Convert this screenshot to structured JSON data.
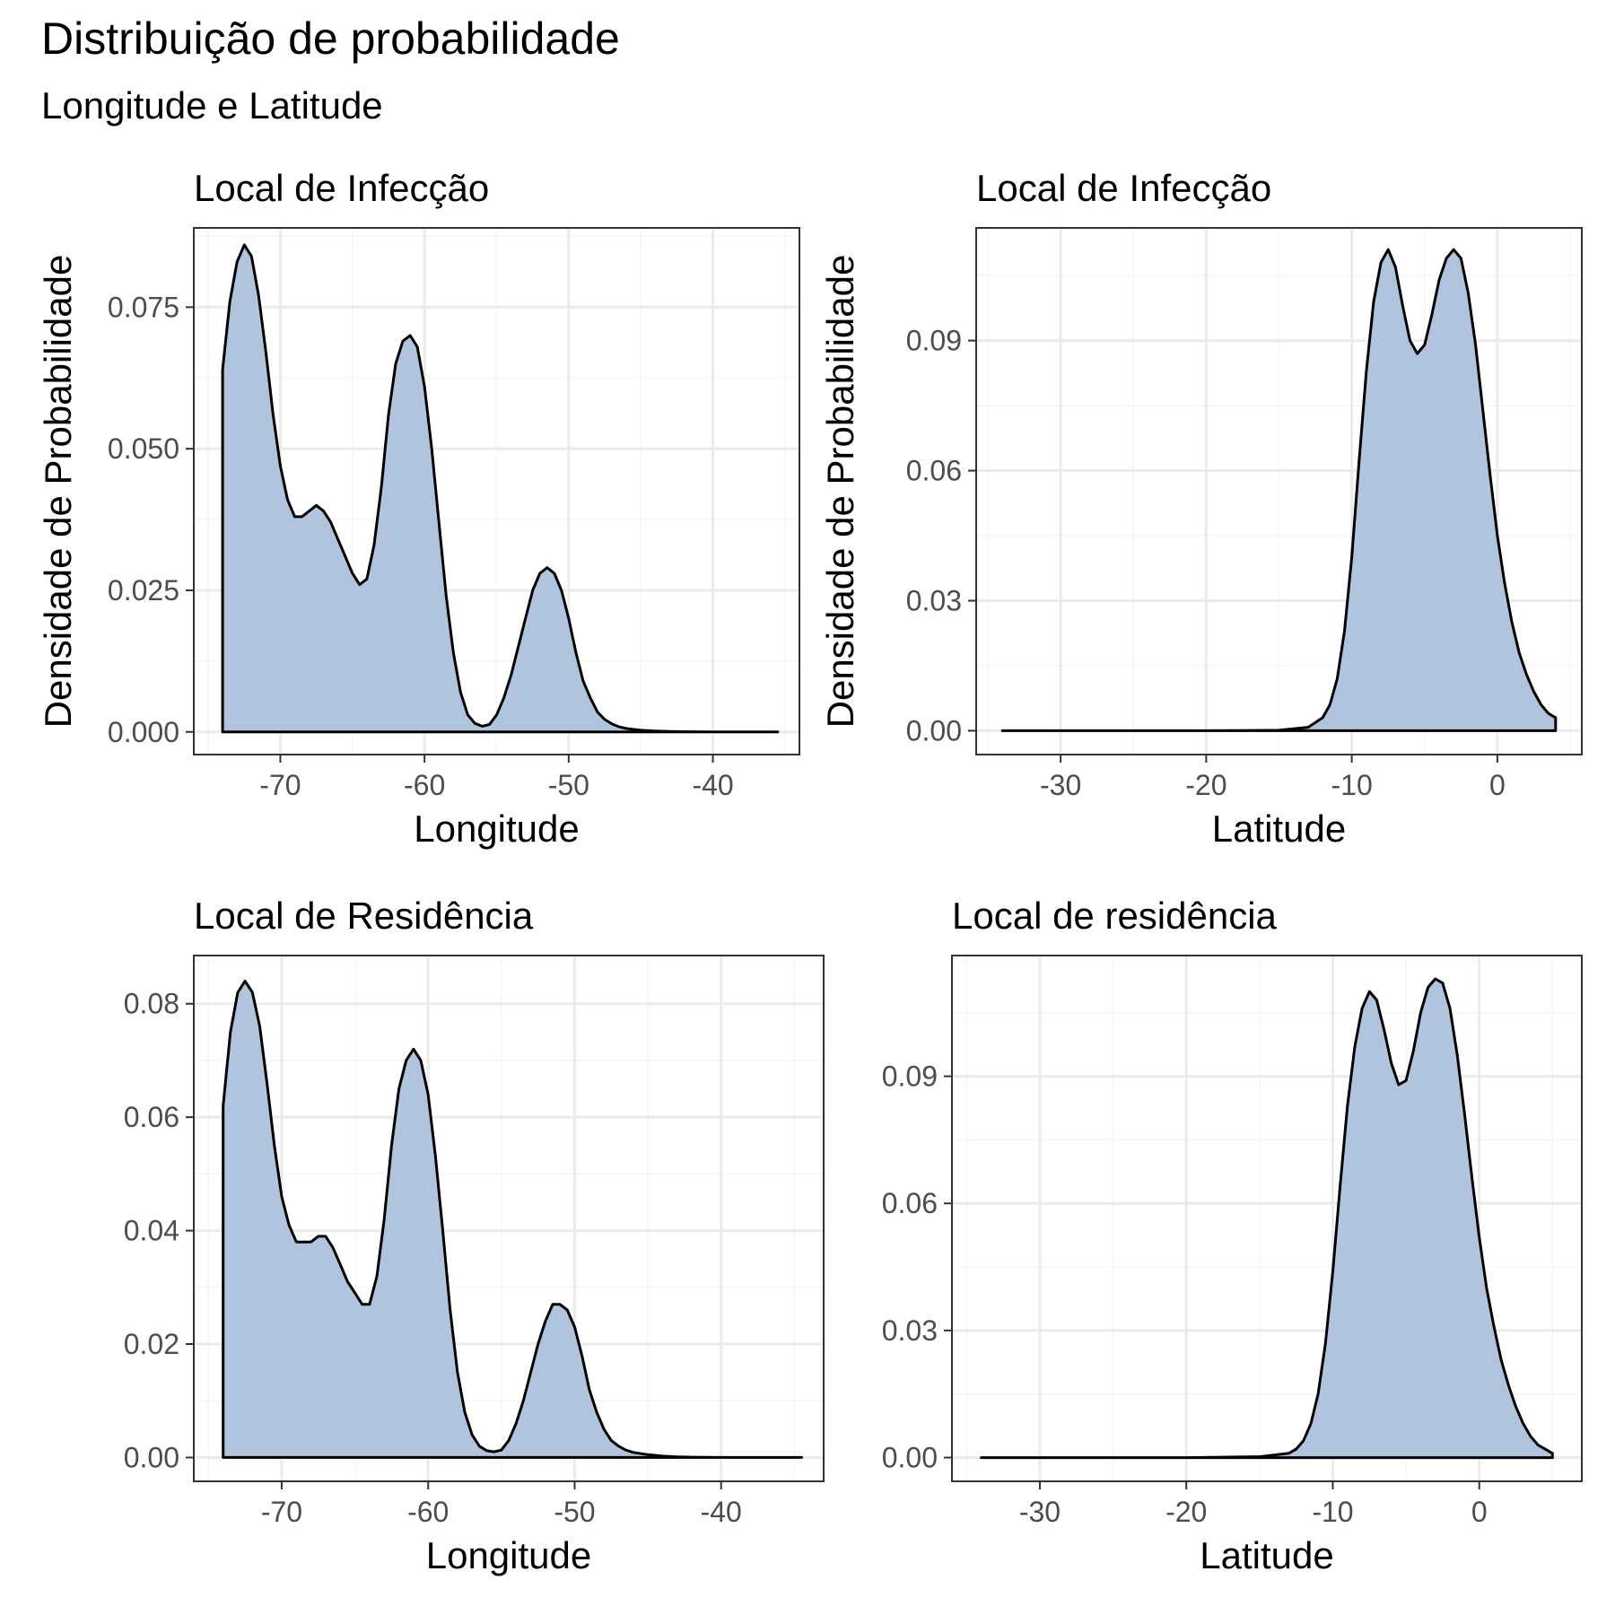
{
  "title": "Distribuição de probabilidade",
  "subtitle": "Longitude e Latitude",
  "colors": {
    "fill": "#b0c4de",
    "line": "#000000",
    "grid_major": "#ebebeb",
    "grid_minor": "#f5f5f5",
    "panel_border": "#333333",
    "tick_text": "#4d4d4d"
  },
  "chart_data": [
    {
      "type": "area",
      "title": "Local de Infecção",
      "xlabel": "Longitude",
      "ylabel": "Densidade de Probabilidade",
      "xlim": [
        -76,
        -34
      ],
      "ylim": [
        -0.004,
        0.089
      ],
      "xticks": [
        -70,
        -60,
        -50,
        -40
      ],
      "yticks": [
        0,
        0.025,
        0.05,
        0.075
      ],
      "ytick_labels": [
        "0.000",
        "0.025",
        "0.050",
        "0.075"
      ],
      "grid": true,
      "series": [
        {
          "x": [
            -74,
            -73.5,
            -73,
            -72.5,
            -72,
            -71.5,
            -71,
            -70.5,
            -70,
            -69.5,
            -69,
            -68.5,
            -68,
            -67.5,
            -67,
            -66.5,
            -66,
            -65.5,
            -65,
            -64.5,
            -64,
            -63.5,
            -63,
            -62.5,
            -62,
            -61.5,
            -61,
            -60.5,
            -60,
            -59.5,
            -59,
            -58.5,
            -58,
            -57.5,
            -57,
            -56.5,
            -56,
            -55.5,
            -55,
            -54.5,
            -54,
            -53.5,
            -53,
            -52.5,
            -52,
            -51.5,
            -51,
            -50.5,
            -50,
            -49.5,
            -49,
            -48.5,
            -48,
            -47.5,
            -47,
            -46.5,
            -46,
            -45,
            -44,
            -43,
            -42,
            -40,
            -38,
            -35.5
          ],
          "y": [
            0.064,
            0.076,
            0.083,
            0.086,
            0.084,
            0.077,
            0.067,
            0.056,
            0.047,
            0.041,
            0.038,
            0.038,
            0.039,
            0.04,
            0.039,
            0.037,
            0.034,
            0.031,
            0.028,
            0.026,
            0.027,
            0.033,
            0.043,
            0.056,
            0.065,
            0.069,
            0.07,
            0.068,
            0.061,
            0.05,
            0.037,
            0.024,
            0.014,
            0.007,
            0.003,
            0.0015,
            0.001,
            0.0013,
            0.003,
            0.006,
            0.01,
            0.015,
            0.02,
            0.025,
            0.028,
            0.029,
            0.028,
            0.025,
            0.02,
            0.014,
            0.009,
            0.006,
            0.0035,
            0.0022,
            0.0014,
            0.0009,
            0.0006,
            0.0003,
            0.00015,
            8e-05,
            4e-05,
            1e-05,
            0,
            0
          ]
        }
      ]
    },
    {
      "type": "area",
      "title": "Local de Infecção",
      "xlabel": "Latitude",
      "ylabel": "Densidade de Probabilidade",
      "xlim": [
        -35.8,
        5.8
      ],
      "ylim": [
        -0.0055,
        0.116
      ],
      "xticks": [
        -30,
        -20,
        -10,
        0
      ],
      "yticks": [
        0,
        0.03,
        0.06,
        0.09
      ],
      "ytick_labels": [
        "0.00",
        "0.03",
        "0.06",
        "0.09"
      ],
      "grid": true,
      "series": [
        {
          "x": [
            -34,
            -30,
            -25,
            -20,
            -15,
            -13,
            -12,
            -11.5,
            -11,
            -10.5,
            -10,
            -9.5,
            -9,
            -8.5,
            -8,
            -7.5,
            -7,
            -6.5,
            -6,
            -5.5,
            -5,
            -4.5,
            -4,
            -3.5,
            -3,
            -2.5,
            -2,
            -1.5,
            -1,
            -0.5,
            0,
            0.5,
            1,
            1.5,
            2,
            2.5,
            3,
            3.5,
            4
          ],
          "y": [
            0,
            0,
            0,
            0,
            0.0001,
            0.0008,
            0.003,
            0.006,
            0.012,
            0.023,
            0.04,
            0.062,
            0.083,
            0.099,
            0.108,
            0.111,
            0.107,
            0.098,
            0.09,
            0.087,
            0.089,
            0.096,
            0.104,
            0.109,
            0.111,
            0.109,
            0.101,
            0.089,
            0.074,
            0.059,
            0.045,
            0.034,
            0.025,
            0.018,
            0.013,
            0.009,
            0.006,
            0.004,
            0.003
          ]
        }
      ]
    },
    {
      "type": "area",
      "title": "Local de Residência",
      "xlabel": "Longitude",
      "ylabel": "",
      "xlim": [
        -76,
        -33
      ],
      "ylim": [
        -0.0042,
        0.0885
      ],
      "xticks": [
        -70,
        -60,
        -50,
        -40
      ],
      "yticks": [
        0,
        0.02,
        0.04,
        0.06,
        0.08
      ],
      "ytick_labels": [
        "0.00",
        "0.02",
        "0.04",
        "0.06",
        "0.08"
      ],
      "grid": true,
      "series": [
        {
          "x": [
            -74,
            -73.5,
            -73,
            -72.5,
            -72,
            -71.5,
            -71,
            -70.5,
            -70,
            -69.5,
            -69,
            -68.5,
            -68,
            -67.5,
            -67,
            -66.5,
            -66,
            -65.5,
            -65,
            -64.5,
            -64,
            -63.5,
            -63,
            -62.5,
            -62,
            -61.5,
            -61,
            -60.5,
            -60,
            -59.5,
            -59,
            -58.5,
            -58,
            -57.5,
            -57,
            -56.5,
            -56,
            -55.5,
            -55,
            -54.5,
            -54,
            -53.5,
            -53,
            -52.5,
            -52,
            -51.5,
            -51,
            -50.5,
            -50,
            -49.5,
            -49,
            -48.5,
            -48,
            -47.5,
            -47,
            -46.5,
            -46,
            -45,
            -44,
            -43,
            -42,
            -40,
            -37,
            -34.5
          ],
          "y": [
            0.062,
            0.075,
            0.082,
            0.084,
            0.082,
            0.076,
            0.066,
            0.055,
            0.046,
            0.041,
            0.038,
            0.038,
            0.038,
            0.039,
            0.039,
            0.037,
            0.034,
            0.031,
            0.029,
            0.027,
            0.027,
            0.032,
            0.042,
            0.055,
            0.065,
            0.07,
            0.072,
            0.07,
            0.064,
            0.053,
            0.04,
            0.026,
            0.015,
            0.008,
            0.004,
            0.002,
            0.0012,
            0.001,
            0.0013,
            0.003,
            0.006,
            0.01,
            0.015,
            0.02,
            0.024,
            0.027,
            0.027,
            0.026,
            0.023,
            0.018,
            0.012,
            0.008,
            0.005,
            0.003,
            0.002,
            0.0013,
            0.0009,
            0.0005,
            0.00025,
            0.00012,
            5e-05,
            1e-05,
            0,
            0
          ]
        }
      ]
    },
    {
      "type": "area",
      "title": "Local de residência",
      "xlabel": "Latitude",
      "ylabel": "",
      "xlim": [
        -36,
        7
      ],
      "ylim": [
        -0.0056,
        0.1185
      ],
      "xticks": [
        -30,
        -20,
        -10,
        0
      ],
      "yticks": [
        0,
        0.03,
        0.06,
        0.09
      ],
      "ytick_labels": [
        "0.00",
        "0.03",
        "0.06",
        "0.09"
      ],
      "grid": true,
      "series": [
        {
          "x": [
            -34,
            -30,
            -25,
            -20,
            -15,
            -13,
            -12.5,
            -12,
            -11.5,
            -11,
            -10.5,
            -10,
            -9.5,
            -9,
            -8.5,
            -8,
            -7.5,
            -7,
            -6.5,
            -6,
            -5.5,
            -5,
            -4.5,
            -4,
            -3.5,
            -3,
            -2.5,
            -2,
            -1.5,
            -1,
            -0.5,
            0,
            0.5,
            1,
            1.5,
            2,
            2.5,
            3,
            3.5,
            4,
            4.5,
            5
          ],
          "y": [
            0,
            0,
            0,
            0,
            0.0002,
            0.001,
            0.002,
            0.004,
            0.008,
            0.015,
            0.027,
            0.044,
            0.064,
            0.083,
            0.097,
            0.106,
            0.11,
            0.108,
            0.101,
            0.093,
            0.088,
            0.089,
            0.096,
            0.105,
            0.111,
            0.113,
            0.112,
            0.106,
            0.095,
            0.081,
            0.066,
            0.052,
            0.04,
            0.031,
            0.023,
            0.017,
            0.012,
            0.008,
            0.005,
            0.003,
            0.002,
            0.001
          ]
        }
      ]
    }
  ]
}
